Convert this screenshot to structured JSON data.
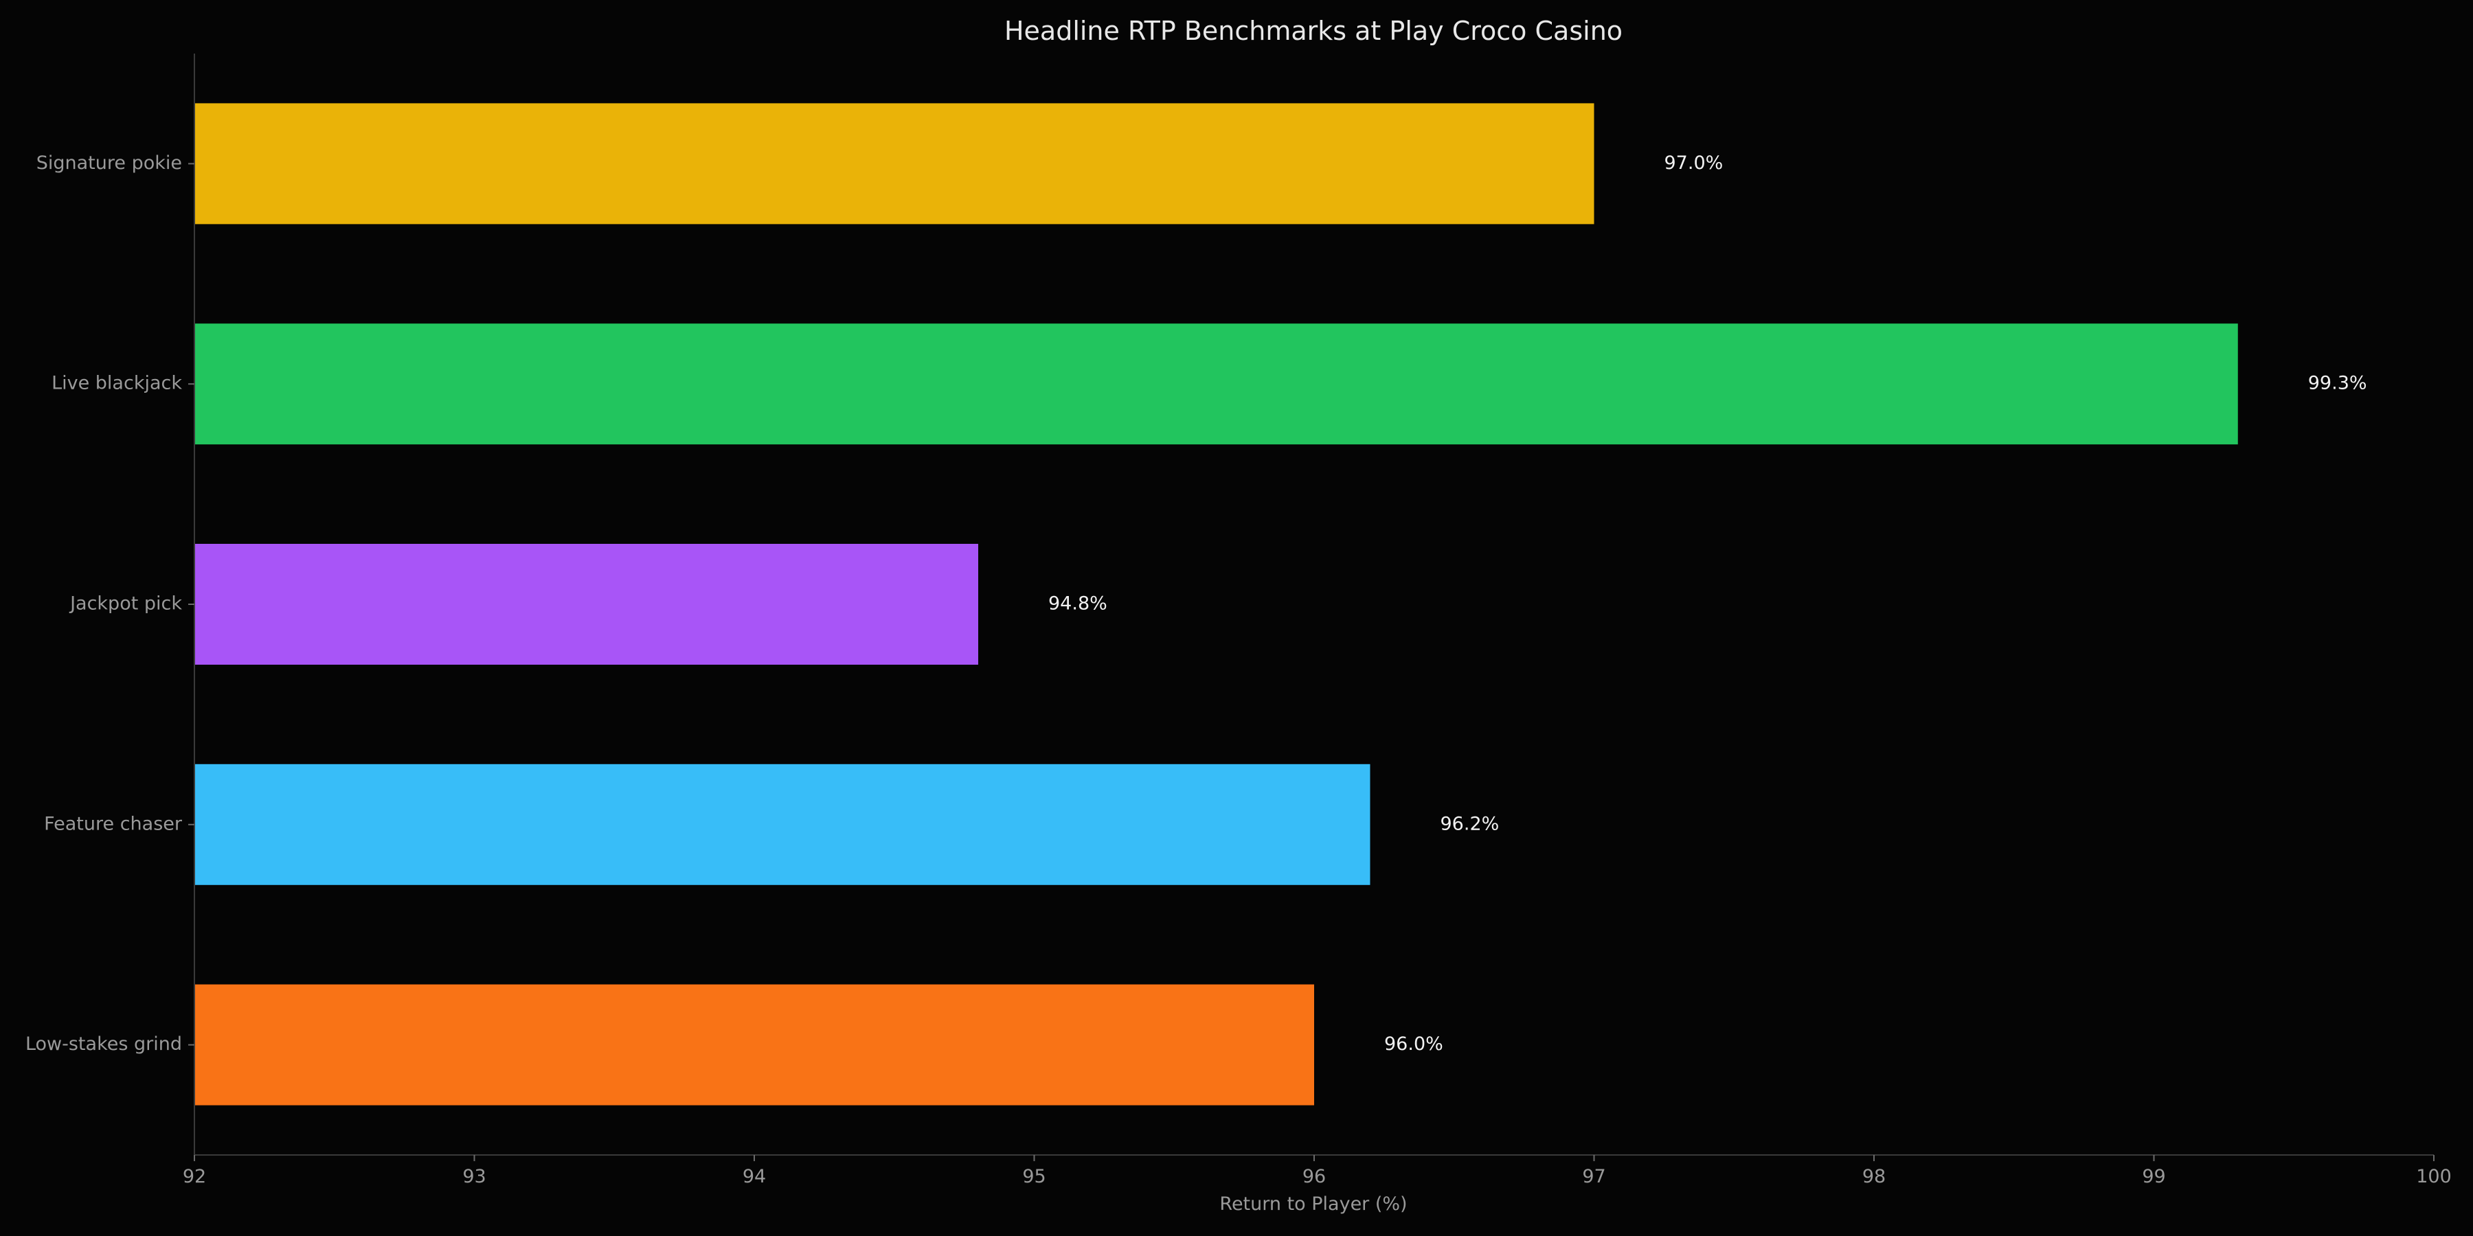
{
  "chart_data": {
    "type": "bar",
    "orientation": "horizontal",
    "title": "Headline RTP Benchmarks at Play Croco Casino",
    "xlabel": "Return to Player (%)",
    "ylabel": "",
    "xlim": [
      92,
      100
    ],
    "xticks": [
      92,
      93,
      94,
      95,
      96,
      97,
      98,
      99,
      100
    ],
    "grid": false,
    "categories": [
      "Signature pokie",
      "Live blackjack",
      "Jackpot pick",
      "Feature chaser",
      "Low-stakes grind"
    ],
    "values": [
      97.0,
      99.3,
      94.8,
      96.2,
      96.0
    ],
    "data_labels": [
      "97.0%",
      "99.3%",
      "94.8%",
      "96.2%",
      "96.0%"
    ],
    "colors": [
      "#eab308",
      "#22c55e",
      "#a855f7",
      "#38bdf8",
      "#f97316"
    ],
    "background_color": "#050505"
  }
}
